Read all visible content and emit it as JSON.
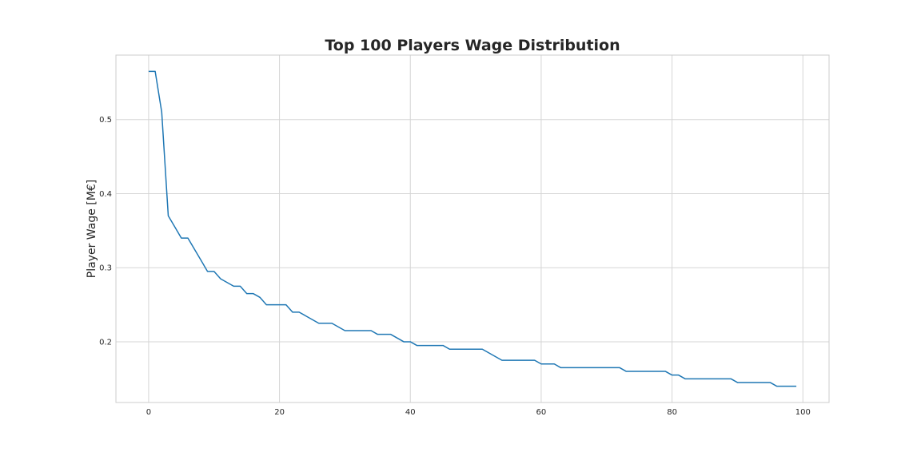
{
  "chart_data": {
    "type": "line",
    "title": "Top 100 Players Wage Distribution",
    "xlabel": "",
    "ylabel": "Player Wage [M€]",
    "xlim": [
      -5,
      104
    ],
    "ylim": [
      0.118,
      0.587
    ],
    "xticks": [
      0,
      20,
      40,
      60,
      80,
      100
    ],
    "yticks": [
      0.2,
      0.3,
      0.4,
      0.5
    ],
    "xtick_labels": [
      "0",
      "20",
      "40",
      "60",
      "80",
      "100"
    ],
    "ytick_labels": [
      "0.2",
      "0.3",
      "0.4",
      "0.5"
    ],
    "grid": true,
    "series": [
      {
        "color": "#1f77b4",
        "x": [
          0,
          1,
          2,
          3,
          4,
          5,
          6,
          7,
          8,
          9,
          10,
          11,
          12,
          13,
          14,
          15,
          16,
          17,
          18,
          19,
          20,
          21,
          22,
          23,
          24,
          25,
          26,
          27,
          28,
          29,
          30,
          31,
          32,
          33,
          34,
          35,
          36,
          37,
          38,
          39,
          40,
          41,
          42,
          43,
          44,
          45,
          46,
          47,
          48,
          49,
          50,
          51,
          52,
          53,
          54,
          55,
          56,
          57,
          58,
          59,
          60,
          61,
          62,
          63,
          64,
          65,
          66,
          67,
          68,
          69,
          70,
          71,
          72,
          73,
          74,
          75,
          76,
          77,
          78,
          79,
          80,
          81,
          82,
          83,
          84,
          85,
          86,
          87,
          88,
          89,
          90,
          91,
          92,
          93,
          94,
          95,
          96,
          97,
          98,
          99
        ],
        "y": [
          0.565,
          0.565,
          0.51,
          0.37,
          0.355,
          0.34,
          0.34,
          0.325,
          0.31,
          0.295,
          0.295,
          0.285,
          0.28,
          0.275,
          0.275,
          0.265,
          0.265,
          0.26,
          0.25,
          0.25,
          0.25,
          0.25,
          0.24,
          0.24,
          0.235,
          0.23,
          0.225,
          0.225,
          0.225,
          0.22,
          0.215,
          0.215,
          0.215,
          0.215,
          0.215,
          0.21,
          0.21,
          0.21,
          0.205,
          0.2,
          0.2,
          0.195,
          0.195,
          0.195,
          0.195,
          0.195,
          0.19,
          0.19,
          0.19,
          0.19,
          0.19,
          0.19,
          0.185,
          0.18,
          0.175,
          0.175,
          0.175,
          0.175,
          0.175,
          0.175,
          0.17,
          0.17,
          0.17,
          0.165,
          0.165,
          0.165,
          0.165,
          0.165,
          0.165,
          0.165,
          0.165,
          0.165,
          0.165,
          0.16,
          0.16,
          0.16,
          0.16,
          0.16,
          0.16,
          0.16,
          0.155,
          0.155,
          0.15,
          0.15,
          0.15,
          0.15,
          0.15,
          0.15,
          0.15,
          0.15,
          0.145,
          0.145,
          0.145,
          0.145,
          0.145,
          0.145,
          0.14,
          0.14,
          0.14,
          0.14
        ]
      }
    ]
  }
}
